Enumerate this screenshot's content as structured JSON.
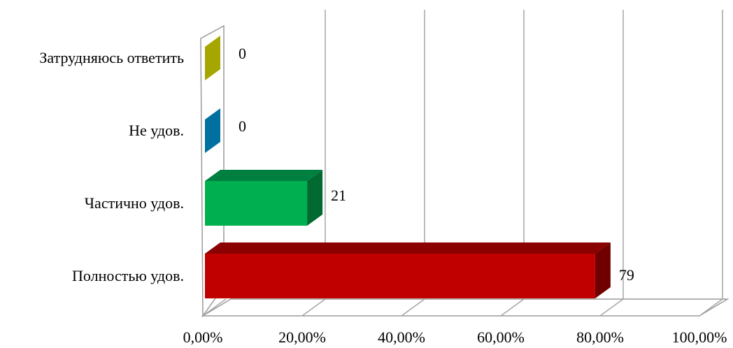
{
  "chart_data": {
    "type": "bar",
    "orientation": "horizontal",
    "style": "3d",
    "categories": [
      "Полностью удов.",
      "Частично удов.",
      "Не удов.",
      "Затрудняюсь ответить"
    ],
    "values": [
      79,
      21,
      0,
      0
    ],
    "data_labels": [
      "79",
      "21",
      "0",
      "0"
    ],
    "x_ticks": [
      "0,00%",
      "20,00%",
      "40,00%",
      "60,00%",
      "80,00%",
      "100,00%"
    ],
    "xlim": [
      0,
      100
    ],
    "grid": true,
    "legend": "none",
    "title": "",
    "xlabel": "",
    "ylabel": "",
    "colors": {
      "bars": [
        "#c00000",
        "#00b050",
        "#0070a0",
        "#a6a600"
      ],
      "bar_tops": [
        "#8b0000",
        "#008040",
        "#005a80",
        "#808000"
      ],
      "bar_sides": [
        "#700000",
        "#006a30",
        "#004a6a",
        "#6a6a00"
      ],
      "gridline": "#a6a6a6",
      "wall": "#9a9a9a"
    }
  }
}
